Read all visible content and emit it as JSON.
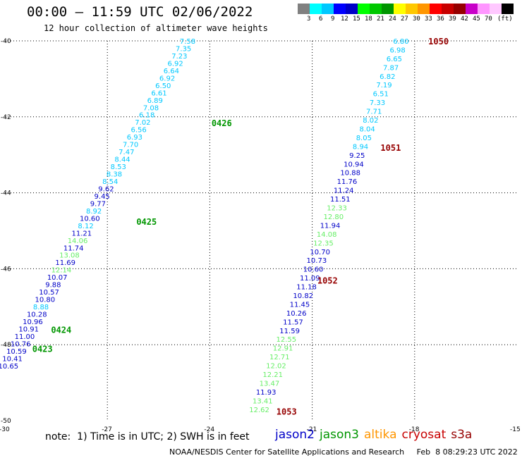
{
  "header": {
    "title": "00:00 – 11:59 UTC 02/06/2022",
    "subtitle": "12 hour collection of altimeter wave heights"
  },
  "colorbar": {
    "unit": "(ft)",
    "colors": [
      "#808080",
      "#00ffff",
      "#00c8ff",
      "#0000ff",
      "#0000c8",
      "#00ff00",
      "#00c800",
      "#009600",
      "#ffff00",
      "#ffc800",
      "#ff9600",
      "#ff0000",
      "#c80000",
      "#960000",
      "#c800c8",
      "#ff96ff",
      "#ffc8ff",
      "#000000"
    ],
    "labels": [
      "3",
      "6",
      "9",
      "12",
      "15",
      "18",
      "21",
      "24",
      "27",
      "30",
      "33",
      "36",
      "39",
      "42",
      "45",
      "70"
    ]
  },
  "footer": {
    "note": "note:  1) Time is in UTC; 2) SWH is in feet",
    "legend": [
      {
        "name": "jason2",
        "color": "#0000c8"
      },
      {
        "name": "jason3",
        "color": "#009600"
      },
      {
        "name": "altika",
        "color": "#ff9600"
      },
      {
        "name": "cryosat",
        "color": "#c80000"
      },
      {
        "name": "s3a",
        "color": "#960000"
      }
    ],
    "credit": "NOAA/NESDIS Center for Satellite Applications and Research     Feb  8 08:29:23 UTC 2022"
  },
  "chart_data": {
    "type": "scatter",
    "xlim": [
      -30,
      -15
    ],
    "ylim": [
      -50,
      -40
    ],
    "x_ticks": [
      "-30",
      "-27",
      "-24",
      "-21",
      "-18",
      "-15"
    ],
    "y_ticks": [
      "-40",
      "-42",
      "-44",
      "-46",
      "-48",
      "-50"
    ],
    "grid": true,
    "tracks": [
      {
        "start": [
          -24.65,
          -40.0
        ],
        "end": [
          -29.9,
          -48.55
        ],
        "color": "#00c8ff",
        "values": [
          "7.58",
          "7.35",
          "7.23",
          "6.92",
          "6.64",
          "6.92",
          "6.50",
          "6.61",
          "6.89",
          "7.08",
          "6.18",
          "7.02",
          "6.56",
          "6.93",
          "7.70",
          "7.47",
          "8.44",
          "8.53",
          "8.38",
          "8.54",
          "9.62",
          "9.45",
          "9.77",
          "8.92",
          "10.60",
          "8.12",
          "11.21",
          "14.06",
          "11.74",
          "13.08",
          "11.69",
          "12.14",
          "10.07",
          "9.88",
          "10.57",
          "10.80",
          "8.88",
          "10.28",
          "10.96",
          "10.91",
          "11.00",
          "10.76",
          "10.59",
          "10.41",
          "10.65"
        ],
        "colors": [
          "#00c8ff",
          "#00c8ff",
          "#00c8ff",
          "#00c8ff",
          "#00c8ff",
          "#00c8ff",
          "#00c8ff",
          "#00c8ff",
          "#00c8ff",
          "#00c8ff",
          "#00c8ff",
          "#00c8ff",
          "#00c8ff",
          "#00c8ff",
          "#00c8ff",
          "#00c8ff",
          "#00c8ff",
          "#00c8ff",
          "#00c8ff",
          "#00c8ff",
          "#0000c8",
          "#0000c8",
          "#0000c8",
          "#00c8ff",
          "#0000c8",
          "#00c8ff",
          "#0000c8",
          "#66ee66",
          "#0000c8",
          "#66ee66",
          "#0000c8",
          "#66ee66",
          "#0000c8",
          "#0000c8",
          "#0000c8",
          "#0000c8",
          "#00c8ff",
          "#0000c8",
          "#0000c8",
          "#0000c8",
          "#0000c8",
          "#0000c8",
          "#0000c8",
          "#0000c8",
          "#0000c8"
        ]
      },
      {
        "start": [
          -18.4,
          -40.0
        ],
        "end": [
          -22.55,
          -49.7
        ],
        "color": "#00c8ff",
        "values": [
          "6.80",
          "6.98",
          "6.65",
          "7.87",
          "6.82",
          "7.19",
          "6.51",
          "7.33",
          "7.71",
          "8.02",
          "8.04",
          "8.05",
          "8.94",
          "9.25",
          "10.94",
          "10.88",
          "11.76",
          "11.24",
          "11.51",
          "12.33",
          "12.80",
          "11.94",
          "14.08",
          "12.35",
          "10.70",
          "10.73",
          "10.60",
          "11.09",
          "11.18",
          "10.82",
          "11.45",
          "10.26",
          "11.57",
          "11.59",
          "12.55",
          "12.91",
          "12.71",
          "12.02",
          "12.21",
          "13.47",
          "11.93",
          "13.41",
          "12.62"
        ],
        "colors": [
          "#00c8ff",
          "#00c8ff",
          "#00c8ff",
          "#00c8ff",
          "#00c8ff",
          "#00c8ff",
          "#00c8ff",
          "#00c8ff",
          "#00c8ff",
          "#00c8ff",
          "#00c8ff",
          "#00c8ff",
          "#00c8ff",
          "#0000c8",
          "#0000c8",
          "#0000c8",
          "#0000c8",
          "#0000c8",
          "#0000c8",
          "#66ee66",
          "#66ee66",
          "#0000c8",
          "#66ee66",
          "#66ee66",
          "#0000c8",
          "#0000c8",
          "#0000c8",
          "#0000c8",
          "#0000c8",
          "#0000c8",
          "#0000c8",
          "#0000c8",
          "#0000c8",
          "#0000c8",
          "#66ee66",
          "#66ee66",
          "#66ee66",
          "#66ee66",
          "#66ee66",
          "#66ee66",
          "#0000c8",
          "#66ee66",
          "#66ee66"
        ]
      }
    ],
    "annotations": [
      {
        "text": "1050",
        "x": -17.6,
        "y": -40.0,
        "color": "#960000"
      },
      {
        "text": "0426",
        "x": -23.95,
        "y": -42.15,
        "color": "#009600"
      },
      {
        "text": "1051",
        "x": -19.0,
        "y": -42.8,
        "color": "#960000"
      },
      {
        "text": "0425",
        "x": -26.15,
        "y": -44.75,
        "color": "#009600"
      },
      {
        "text": "1052",
        "x": -20.85,
        "y": -46.3,
        "color": "#960000"
      },
      {
        "text": "0424",
        "x": -28.65,
        "y": -47.6,
        "color": "#009600"
      },
      {
        "text": "0423",
        "x": -29.2,
        "y": -48.1,
        "color": "#009600"
      },
      {
        "text": "1053",
        "x": -22.05,
        "y": -49.75,
        "color": "#960000"
      }
    ]
  }
}
